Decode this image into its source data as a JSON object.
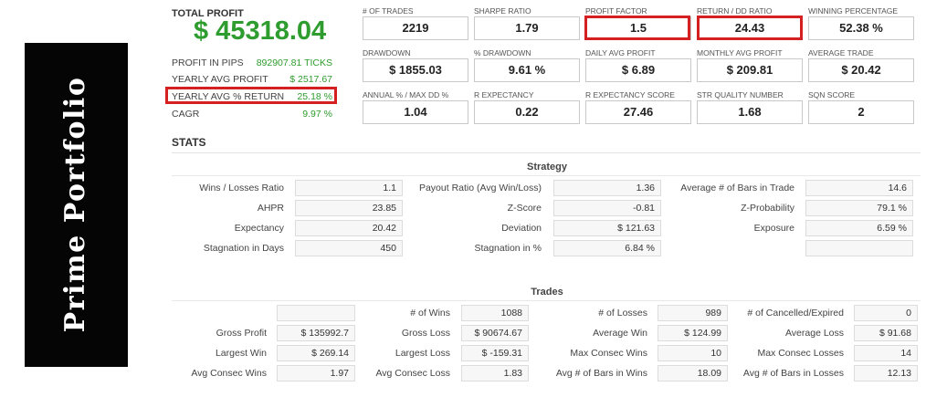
{
  "banner": {
    "text": "Prime Portfolio"
  },
  "summary": {
    "total_profit_label": "TOTAL PROFIT",
    "total_profit_value": "$ 45318.04",
    "rows": [
      {
        "label": "PROFIT IN PIPS",
        "value": "892907.81 TICKS"
      },
      {
        "label": "YEARLY AVG PROFIT",
        "value": "$ 2517.67"
      },
      {
        "label": "YEARLY AVG % RETURN",
        "value": "25.18 %"
      },
      {
        "label": "CAGR",
        "value": "9.97 %"
      }
    ]
  },
  "metrics": [
    {
      "label": "# OF TRADES",
      "value": "2219"
    },
    {
      "label": "SHARPE RATIO",
      "value": "1.79"
    },
    {
      "label": "PROFIT FACTOR",
      "value": "1.5"
    },
    {
      "label": "RETURN / DD RATIO",
      "value": "24.43"
    },
    {
      "label": "WINNING PERCENTAGE",
      "value": "52.38 %"
    },
    {
      "label": "DRAWDOWN",
      "value": "$ 1855.03"
    },
    {
      "label": "% DRAWDOWN",
      "value": "9.61 %"
    },
    {
      "label": "DAILY AVG PROFIT",
      "value": "$ 6.89"
    },
    {
      "label": "MONTHLY AVG PROFIT",
      "value": "$ 209.81"
    },
    {
      "label": "AVERAGE TRADE",
      "value": "$ 20.42"
    },
    {
      "label": "ANNUAL % / MAX DD %",
      "value": "1.04"
    },
    {
      "label": "R EXPECTANCY",
      "value": "0.22"
    },
    {
      "label": "R EXPECTANCY SCORE",
      "value": "27.46"
    },
    {
      "label": "STR QUALITY NUMBER",
      "value": "1.68"
    },
    {
      "label": "SQN SCORE",
      "value": "2"
    }
  ],
  "stats": {
    "title": "STATS",
    "strategy": {
      "title": "Strategy",
      "rows": [
        [
          {
            "label": "Wins / Losses Ratio",
            "value": "1.1"
          },
          {
            "label": "Payout Ratio (Avg Win/Loss)",
            "value": "1.36"
          },
          {
            "label": "Average # of Bars in Trade",
            "value": "14.6"
          }
        ],
        [
          {
            "label": "AHPR",
            "value": "23.85"
          },
          {
            "label": "Z-Score",
            "value": "-0.81"
          },
          {
            "label": "Z-Probability",
            "value": "79.1 %"
          }
        ],
        [
          {
            "label": "Expectancy",
            "value": "20.42"
          },
          {
            "label": "Deviation",
            "value": "$ 121.63"
          },
          {
            "label": "Exposure",
            "value": "6.59 %"
          }
        ],
        [
          {
            "label": "Stagnation in Days",
            "value": "450"
          },
          {
            "label": "Stagnation in %",
            "value": "6.84 %"
          },
          {
            "label": "",
            "value": ""
          }
        ]
      ]
    },
    "trades": {
      "title": "Trades",
      "rows": [
        [
          {
            "label": "",
            "value": ""
          },
          {
            "label": "# of Wins",
            "value": "1088"
          },
          {
            "label": "# of Losses",
            "value": "989"
          },
          {
            "label": "# of Cancelled/Expired",
            "value": "0"
          }
        ],
        [
          {
            "label": "Gross Profit",
            "value": "$ 135992.7"
          },
          {
            "label": "Gross Loss",
            "value": "$ 90674.67"
          },
          {
            "label": "Average Win",
            "value": "$ 124.99"
          },
          {
            "label": "Average Loss",
            "value": "$ 91.68"
          }
        ],
        [
          {
            "label": "Largest Win",
            "value": "$ 269.14"
          },
          {
            "label": "Largest Loss",
            "value": "$ -159.31"
          },
          {
            "label": "Max Consec Wins",
            "value": "10"
          },
          {
            "label": "Max Consec Losses",
            "value": "14"
          }
        ],
        [
          {
            "label": "Avg Consec Wins",
            "value": "1.97"
          },
          {
            "label": "Avg Consec Loss",
            "value": "1.83"
          },
          {
            "label": "Avg # of Bars in Wins",
            "value": "18.09"
          },
          {
            "label": "Avg # of Bars in Losses",
            "value": "12.13"
          }
        ]
      ]
    }
  }
}
